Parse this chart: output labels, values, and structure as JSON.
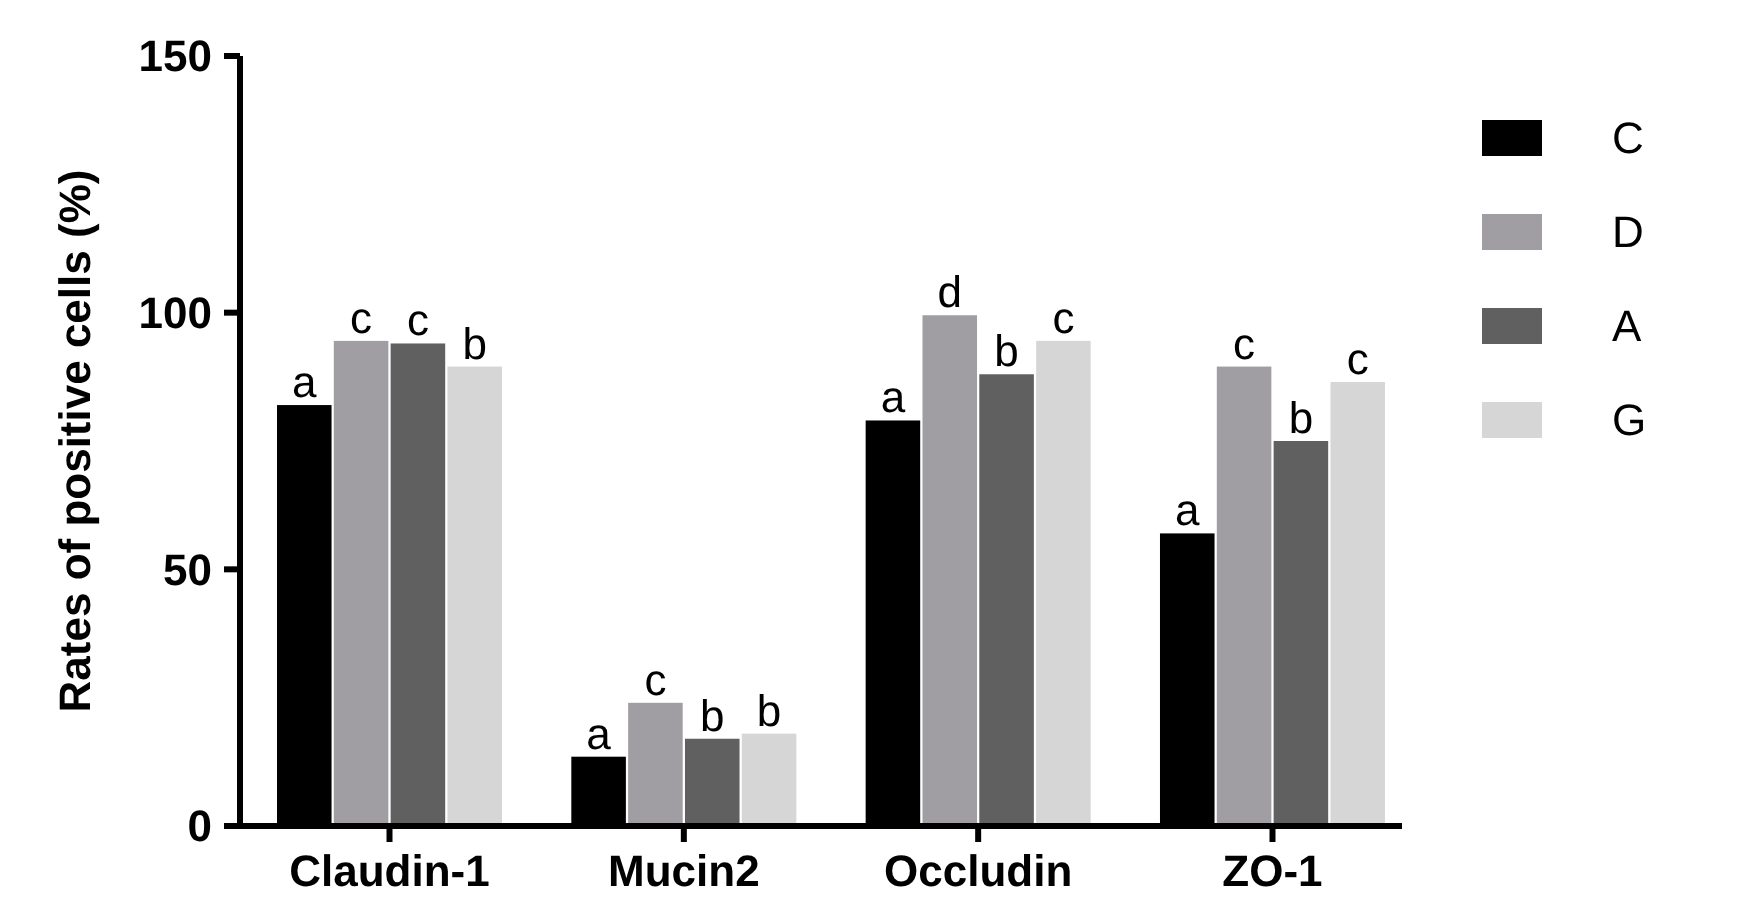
{
  "chart_data": {
    "type": "bar",
    "ylabel": "Rates of positive cells (%)",
    "categories": [
      "Claudin-1",
      "Mucin2",
      "Occludin",
      "ZO-1"
    ],
    "series": [
      {
        "name": "C",
        "color": "#000000",
        "values": [
          82,
          13.5,
          79,
          57
        ],
        "value_labels": [
          "a",
          "a",
          "a",
          "a"
        ]
      },
      {
        "name": "D",
        "color": "#a19ea3",
        "values": [
          94.5,
          24,
          99.5,
          89.5
        ],
        "value_labels": [
          "c",
          "c",
          "d",
          "c"
        ]
      },
      {
        "name": "A",
        "color": "#606060",
        "values": [
          94,
          17,
          88,
          75
        ],
        "value_labels": [
          "c",
          "b",
          "b",
          "b"
        ]
      },
      {
        "name": "G",
        "color": "#d6d6d6",
        "values": [
          89.5,
          18,
          94.5,
          86.5
        ],
        "value_labels": [
          "b",
          "b",
          "c",
          "c"
        ]
      }
    ],
    "ylim": [
      0,
      150
    ],
    "yticks": [
      0,
      50,
      100,
      150
    ],
    "grid": false,
    "legend": "right"
  }
}
